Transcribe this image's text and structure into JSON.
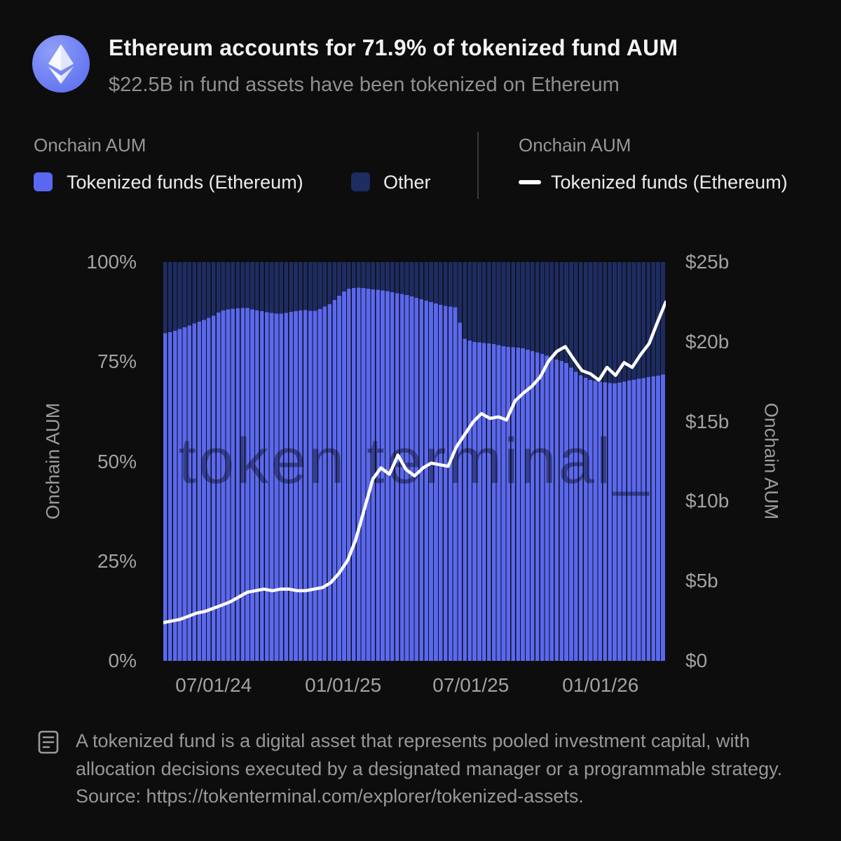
{
  "header": {
    "title": "Ethereum accounts for 71.9% of tokenized fund AUM",
    "subtitle": "$22.5B in fund assets have been tokenized on Ethereum",
    "logo": "ethereum-logo"
  },
  "legend": {
    "left": {
      "heading": "Onchain AUM",
      "items": [
        {
          "label": "Tokenized funds (Ethereum)",
          "color": "#5A68EF",
          "type": "square"
        },
        {
          "label": "Other",
          "color": "#1E2C62",
          "type": "square"
        }
      ]
    },
    "right": {
      "heading": "Onchain AUM",
      "items": [
        {
          "label": "Tokenized funds (Ethereum)",
          "color": "#FFFFFF",
          "type": "line"
        }
      ]
    }
  },
  "watermark": "token terminal_",
  "footnote": {
    "icon": "memo-icon",
    "text": "A tokenized fund is a digital asset that represents pooled investment capital, with allocation decisions executed by a designated manager or a programmable strategy. Source: https://tokenterminal.com/explorer/tokenized-assets."
  },
  "chart_data": {
    "type": "stacked-area-percent+line",
    "title": "Ethereum accounts for 71.9% of tokenized fund AUM",
    "left_axis": {
      "label": "Onchain AUM",
      "ticks": [
        "100%",
        "75%",
        "50%",
        "25%",
        "0%"
      ],
      "range": [
        0,
        100
      ],
      "unit": "%"
    },
    "right_axis": {
      "label": "Onchain AUM",
      "ticks": [
        "$25b",
        "$20b",
        "$15b",
        "$10b",
        "$5b",
        "$0"
      ],
      "range": [
        0,
        25
      ],
      "unit": "$b"
    },
    "x_ticks": [
      {
        "label": "07/01/24",
        "t": 0.1
      },
      {
        "label": "01/01/25",
        "t": 0.358
      },
      {
        "label": "07/01/25",
        "t": 0.612
      },
      {
        "label": "01/01/26",
        "t": 0.87
      }
    ],
    "series": {
      "stack_bottom": "Tokenized funds (Ethereum) — share of onchain AUM (%)",
      "stack_top": "Other — share of onchain AUM (%)",
      "line": "Tokenized funds (Ethereum) — onchain AUM ($b, right axis)"
    },
    "points_format": [
      "t (0-1 across x-axis)",
      "ethereum_share_pct",
      "ethereum_aum_usd_b"
    ],
    "points": [
      [
        0.0,
        82.0,
        2.4
      ],
      [
        0.017,
        82.5,
        2.5
      ],
      [
        0.033,
        83.2,
        2.6
      ],
      [
        0.05,
        84.0,
        2.8
      ],
      [
        0.067,
        84.8,
        3.0
      ],
      [
        0.083,
        85.6,
        3.1
      ],
      [
        0.1,
        86.5,
        3.3
      ],
      [
        0.117,
        87.8,
        3.5
      ],
      [
        0.133,
        88.2,
        3.7
      ],
      [
        0.15,
        88.4,
        4.0
      ],
      [
        0.167,
        88.5,
        4.3
      ],
      [
        0.183,
        88.0,
        4.4
      ],
      [
        0.2,
        87.6,
        4.5
      ],
      [
        0.217,
        87.2,
        4.4
      ],
      [
        0.233,
        87.0,
        4.5
      ],
      [
        0.25,
        87.4,
        4.5
      ],
      [
        0.267,
        87.8,
        4.4
      ],
      [
        0.283,
        88.0,
        4.4
      ],
      [
        0.3,
        87.6,
        4.5
      ],
      [
        0.317,
        88.5,
        4.6
      ],
      [
        0.333,
        89.5,
        4.9
      ],
      [
        0.35,
        91.5,
        5.5
      ],
      [
        0.367,
        93.3,
        6.3
      ],
      [
        0.383,
        93.6,
        7.6
      ],
      [
        0.4,
        93.5,
        9.5
      ],
      [
        0.417,
        93.2,
        11.4
      ],
      [
        0.433,
        93.0,
        12.1
      ],
      [
        0.45,
        92.6,
        11.7
      ],
      [
        0.467,
        92.2,
        12.9
      ],
      [
        0.483,
        91.8,
        12.0
      ],
      [
        0.5,
        91.2,
        11.6
      ],
      [
        0.517,
        90.6,
        12.1
      ],
      [
        0.533,
        90.0,
        12.4
      ],
      [
        0.55,
        89.4,
        12.3
      ],
      [
        0.567,
        88.9,
        12.2
      ],
      [
        0.583,
        88.6,
        13.4
      ],
      [
        0.6,
        80.8,
        14.2
      ],
      [
        0.617,
        80.0,
        15.0
      ],
      [
        0.633,
        79.8,
        15.5
      ],
      [
        0.65,
        79.6,
        15.2
      ],
      [
        0.667,
        79.2,
        15.3
      ],
      [
        0.683,
        78.8,
        15.1
      ],
      [
        0.7,
        78.6,
        16.3
      ],
      [
        0.717,
        78.4,
        16.8
      ],
      [
        0.733,
        77.8,
        17.2
      ],
      [
        0.75,
        77.2,
        17.8
      ],
      [
        0.767,
        76.4,
        18.8
      ],
      [
        0.783,
        75.6,
        19.4
      ],
      [
        0.8,
        75.0,
        19.7
      ],
      [
        0.817,
        73.0,
        18.9
      ],
      [
        0.833,
        71.5,
        18.2
      ],
      [
        0.85,
        70.5,
        18.0
      ],
      [
        0.867,
        70.0,
        17.6
      ],
      [
        0.883,
        69.8,
        18.4
      ],
      [
        0.9,
        69.6,
        17.9
      ],
      [
        0.917,
        70.0,
        18.7
      ],
      [
        0.933,
        70.4,
        18.4
      ],
      [
        0.95,
        70.8,
        19.2
      ],
      [
        0.967,
        71.2,
        19.9
      ],
      [
        0.983,
        71.5,
        21.2
      ],
      [
        1.0,
        71.9,
        22.5
      ]
    ],
    "bar_count": 104,
    "colors": {
      "ethereum": "#5A68EF",
      "other": "#1E2C62",
      "line": "#FFFFFF"
    },
    "legend_position": "top",
    "grid": false
  }
}
